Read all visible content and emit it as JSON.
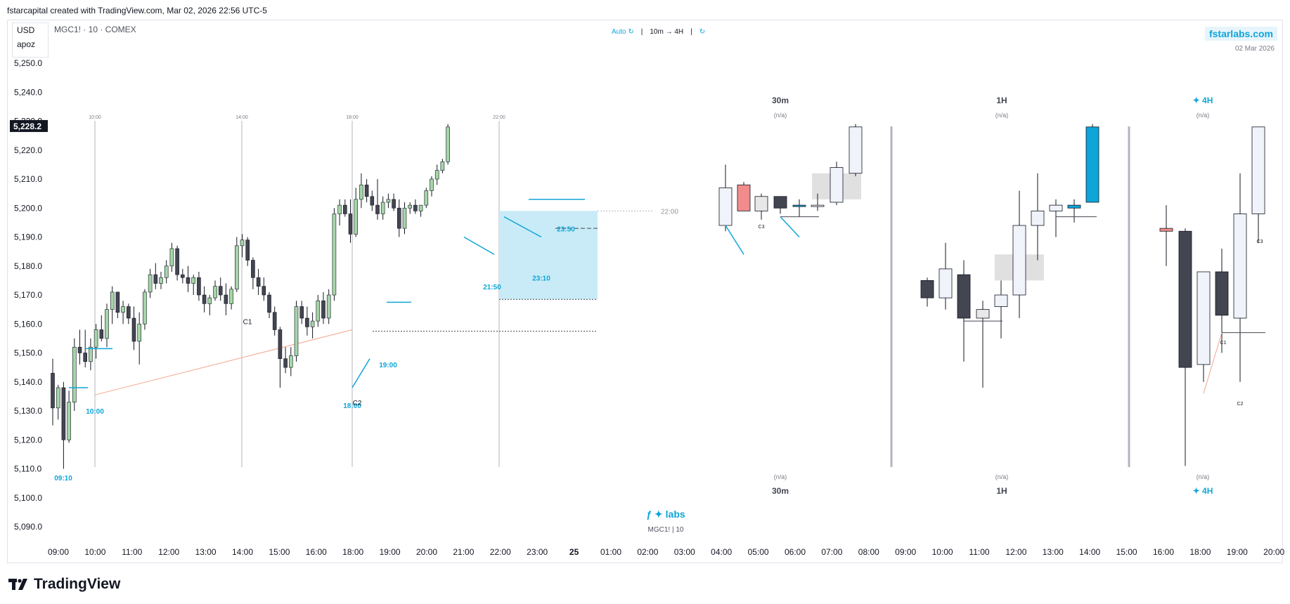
{
  "header": {
    "title": "fstarcapital created with TradingView.com, Mar 02, 2026 22:56 UTC-5"
  },
  "legend": {
    "currency": "USD",
    "account": "apoz",
    "symbol": "MGC1! · 10 · COMEX"
  },
  "toolbar": {
    "auto": "Auto ↻",
    "sep1": "|",
    "tf": "10m → 4H",
    "sep2": "|",
    "refresh": "↻"
  },
  "brand": {
    "name": "fstarlabs.com",
    "date": "02 Mar 2026"
  },
  "footer_brand": {
    "name": "ƒ ✦ labs",
    "sub": "MGC1! | 10"
  },
  "logo": {
    "text": "TradingView"
  },
  "panels": [
    {
      "label": "30m",
      "na": "(n/a)",
      "label_bottom": "30m"
    },
    {
      "label": "1H",
      "na": "(n/a)",
      "label_bottom": "1H"
    },
    {
      "label": "✦ 4H",
      "na": "(n/a)",
      "label_bottom": "✦ 4H"
    }
  ],
  "colors": {
    "up": "#a5d6a7",
    "down": "#434651",
    "accent": "#0ea5d8",
    "zone": "#c8ebf7",
    "trend": "#f4a58e"
  },
  "chart_data": {
    "type": "candlestick",
    "title": "",
    "price_axis": [
      "5,250.0",
      "5,240.0",
      "5,230.0",
      "5,220.0",
      "5,210.0",
      "5,200.0",
      "5,190.0",
      "5,180.0",
      "5,170.0",
      "5,160.0",
      "5,150.0",
      "5,140.0",
      "5,130.0",
      "5,120.0",
      "5,110.0",
      "5,100.0",
      "5,090.0"
    ],
    "ylim": [
      5085,
      5252
    ],
    "last_price": "5,228.2",
    "time_axis": [
      "09:00",
      "10:00",
      "11:00",
      "12:00",
      "13:00",
      "14:00",
      "15:00",
      "16:00",
      "18:00",
      "19:00",
      "20:00",
      "21:00",
      "22:00",
      "23:00",
      "25",
      "01:00",
      "02:00",
      "03:00",
      "04:00",
      "05:00",
      "06:00",
      "07:00",
      "08:00",
      "09:00",
      "10:00",
      "11:00",
      "12:00",
      "13:00",
      "14:00",
      "15:00",
      "16:00",
      "18:00",
      "19:00",
      "20:00"
    ],
    "session_lines": [
      "10:00",
      "14:00",
      "18:00",
      "22:00"
    ],
    "annotations": [
      "09:10",
      "10:00",
      "18:00",
      "19:00",
      "21:50",
      "23:10",
      "23:50",
      "22:00",
      "C1",
      "C2",
      "C3"
    ],
    "candles": [
      {
        "o": 5143,
        "h": 5148,
        "l": 5125,
        "c": 5131
      },
      {
        "o": 5131,
        "h": 5139,
        "l": 5127,
        "c": 5138
      },
      {
        "o": 5138,
        "h": 5140,
        "l": 5110,
        "c": 5120
      },
      {
        "o": 5120,
        "h": 5137,
        "l": 5119,
        "c": 5133
      },
      {
        "o": 5133,
        "h": 5155,
        "l": 5130,
        "c": 5152
      },
      {
        "o": 5152,
        "h": 5158,
        "l": 5146,
        "c": 5150
      },
      {
        "o": 5150,
        "h": 5158,
        "l": 5145,
        "c": 5147
      },
      {
        "o": 5147,
        "h": 5155,
        "l": 5144,
        "c": 5152
      },
      {
        "o": 5152,
        "h": 5160,
        "l": 5148,
        "c": 5158
      },
      {
        "o": 5158,
        "h": 5163,
        "l": 5154,
        "c": 5155
      },
      {
        "o": 5155,
        "h": 5167,
        "l": 5152,
        "c": 5165
      },
      {
        "o": 5165,
        "h": 5173,
        "l": 5160,
        "c": 5171
      },
      {
        "o": 5171,
        "h": 5171,
        "l": 5162,
        "c": 5164
      },
      {
        "o": 5164,
        "h": 5168,
        "l": 5160,
        "c": 5166
      },
      {
        "o": 5166,
        "h": 5167,
        "l": 5160,
        "c": 5162
      },
      {
        "o": 5162,
        "h": 5166,
        "l": 5151,
        "c": 5154
      },
      {
        "o": 5154,
        "h": 5164,
        "l": 5146,
        "c": 5160
      },
      {
        "o": 5160,
        "h": 5172,
        "l": 5158,
        "c": 5171
      },
      {
        "o": 5171,
        "h": 5179,
        "l": 5169,
        "c": 5177
      },
      {
        "o": 5177,
        "h": 5181,
        "l": 5172,
        "c": 5174
      },
      {
        "o": 5174,
        "h": 5178,
        "l": 5172,
        "c": 5176
      },
      {
        "o": 5176,
        "h": 5182,
        "l": 5174,
        "c": 5180
      },
      {
        "o": 5180,
        "h": 5188,
        "l": 5178,
        "c": 5186
      },
      {
        "o": 5186,
        "h": 5187,
        "l": 5175,
        "c": 5177
      },
      {
        "o": 5177,
        "h": 5179,
        "l": 5174,
        "c": 5176
      },
      {
        "o": 5176,
        "h": 5180,
        "l": 5171,
        "c": 5174
      },
      {
        "o": 5174,
        "h": 5177,
        "l": 5170,
        "c": 5176
      },
      {
        "o": 5176,
        "h": 5178,
        "l": 5168,
        "c": 5170
      },
      {
        "o": 5170,
        "h": 5173,
        "l": 5164,
        "c": 5167
      },
      {
        "o": 5167,
        "h": 5170,
        "l": 5163,
        "c": 5169
      },
      {
        "o": 5169,
        "h": 5175,
        "l": 5168,
        "c": 5173
      },
      {
        "o": 5173,
        "h": 5176,
        "l": 5168,
        "c": 5170
      },
      {
        "o": 5170,
        "h": 5174,
        "l": 5163,
        "c": 5167
      },
      {
        "o": 5167,
        "h": 5173,
        "l": 5165,
        "c": 5172
      },
      {
        "o": 5172,
        "h": 5190,
        "l": 5171,
        "c": 5187
      },
      {
        "o": 5187,
        "h": 5191,
        "l": 5183,
        "c": 5189
      },
      {
        "o": 5189,
        "h": 5190,
        "l": 5180,
        "c": 5182
      },
      {
        "o": 5182,
        "h": 5183,
        "l": 5172,
        "c": 5176
      },
      {
        "o": 5176,
        "h": 5179,
        "l": 5170,
        "c": 5173
      },
      {
        "o": 5173,
        "h": 5176,
        "l": 5168,
        "c": 5170
      },
      {
        "o": 5170,
        "h": 5171,
        "l": 5162,
        "c": 5164
      },
      {
        "o": 5164,
        "h": 5166,
        "l": 5156,
        "c": 5158
      },
      {
        "o": 5158,
        "h": 5159,
        "l": 5138,
        "c": 5148
      },
      {
        "o": 5148,
        "h": 5152,
        "l": 5143,
        "c": 5145
      },
      {
        "o": 5145,
        "h": 5152,
        "l": 5142,
        "c": 5149
      },
      {
        "o": 5149,
        "h": 5168,
        "l": 5147,
        "c": 5166
      },
      {
        "o": 5166,
        "h": 5168,
        "l": 5160,
        "c": 5162
      },
      {
        "o": 5162,
        "h": 5166,
        "l": 5156,
        "c": 5159
      },
      {
        "o": 5159,
        "h": 5164,
        "l": 5155,
        "c": 5161
      },
      {
        "o": 5161,
        "h": 5170,
        "l": 5159,
        "c": 5168
      },
      {
        "o": 5168,
        "h": 5171,
        "l": 5160,
        "c": 5162
      },
      {
        "o": 5162,
        "h": 5172,
        "l": 5160,
        "c": 5170
      },
      {
        "o": 5170,
        "h": 5200,
        "l": 5168,
        "c": 5198
      },
      {
        "o": 5198,
        "h": 5203,
        "l": 5194,
        "c": 5201
      },
      {
        "o": 5201,
        "h": 5203,
        "l": 5197,
        "c": 5198
      },
      {
        "o": 5198,
        "h": 5203,
        "l": 5188,
        "c": 5191
      },
      {
        "o": 5191,
        "h": 5207,
        "l": 5190,
        "c": 5203
      },
      {
        "o": 5203,
        "h": 5212,
        "l": 5200,
        "c": 5208
      },
      {
        "o": 5208,
        "h": 5210,
        "l": 5202,
        "c": 5204
      },
      {
        "o": 5204,
        "h": 5206,
        "l": 5199,
        "c": 5201
      },
      {
        "o": 5201,
        "h": 5210,
        "l": 5196,
        "c": 5198
      },
      {
        "o": 5198,
        "h": 5204,
        "l": 5196,
        "c": 5202
      },
      {
        "o": 5202,
        "h": 5205,
        "l": 5200,
        "c": 5203
      },
      {
        "o": 5203,
        "h": 5205,
        "l": 5199,
        "c": 5200
      },
      {
        "o": 5200,
        "h": 5203,
        "l": 5190,
        "c": 5193
      },
      {
        "o": 5193,
        "h": 5202,
        "l": 5191,
        "c": 5200
      },
      {
        "o": 5200,
        "h": 5202,
        "l": 5198,
        "c": 5201
      },
      {
        "o": 5201,
        "h": 5203,
        "l": 5198,
        "c": 5199
      },
      {
        "o": 5199,
        "h": 5201,
        "l": 5197,
        "c": 5201
      },
      {
        "o": 5201,
        "h": 5207,
        "l": 5200,
        "c": 5206
      },
      {
        "o": 5206,
        "h": 5211,
        "l": 5204,
        "c": 5210
      },
      {
        "o": 5210,
        "h": 5215,
        "l": 5208,
        "c": 5213
      },
      {
        "o": 5213,
        "h": 5217,
        "l": 5212,
        "c": 5216
      },
      {
        "o": 5216,
        "h": 5229,
        "l": 5215,
        "c": 5228
      }
    ]
  }
}
